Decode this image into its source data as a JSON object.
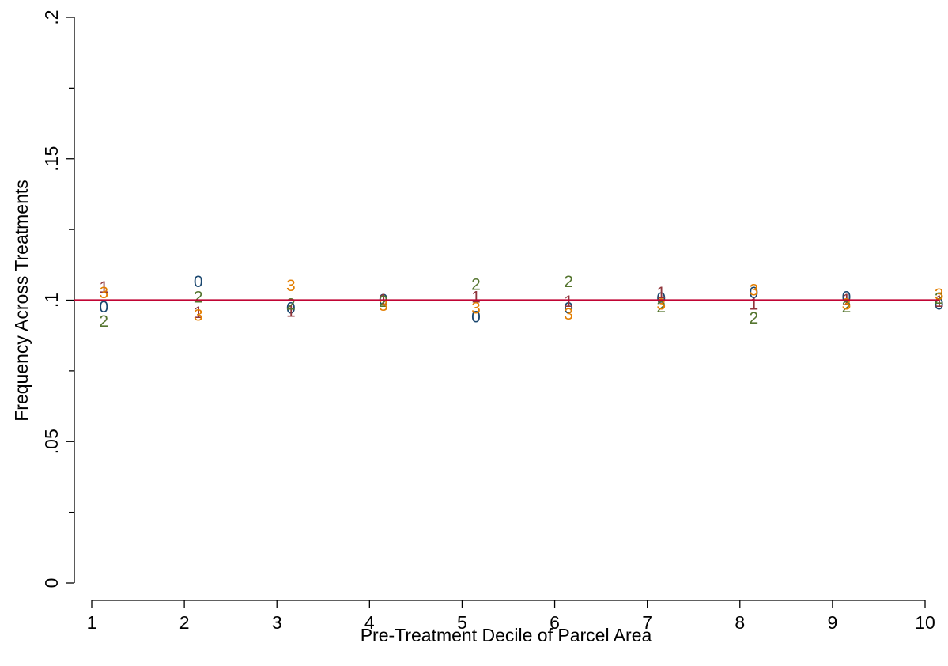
{
  "chart_data": {
    "type": "scatter",
    "xlabel": "Pre-Treatment Decile of Parcel Area",
    "ylabel": "Frequency Across Treatments",
    "x_ticks": [
      1,
      2,
      3,
      4,
      5,
      6,
      7,
      8,
      9,
      10
    ],
    "x_tick_labels": [
      "1",
      "2",
      "3",
      "4",
      "5",
      "6",
      "7",
      "8",
      "9",
      "10"
    ],
    "y_ticks": [
      0,
      0.05,
      0.1,
      0.15,
      0.2
    ],
    "y_tick_labels": [
      "0",
      ".05",
      ".1",
      ".15",
      ".2"
    ],
    "xlim": [
      0.8,
      10.2
    ],
    "ylim": [
      0,
      0.2
    ],
    "grid": false,
    "series": [
      {
        "marker": "0",
        "color": "#1a476f",
        "x": [
          1.13,
          2.15,
          3.15,
          4.15,
          5.15,
          6.15,
          7.15,
          8.15,
          9.15,
          10.15
        ],
        "values": [
          0.0975,
          0.1065,
          0.097,
          0.1,
          0.094,
          0.097,
          0.1005,
          0.1025,
          0.101,
          0.0985
        ]
      },
      {
        "marker": "1",
        "color": "#90353b",
        "x": [
          1.13,
          2.15,
          3.15,
          4.15,
          5.15,
          6.15,
          7.15,
          8.15,
          9.15,
          10.15
        ],
        "values": [
          0.1045,
          0.0955,
          0.096,
          0.1,
          0.101,
          0.0995,
          0.1025,
          0.0985,
          0.1,
          0.0995
        ]
      },
      {
        "marker": "2",
        "color": "#55752f",
        "x": [
          1.13,
          2.15,
          3.15,
          4.15,
          5.15,
          6.15,
          7.15,
          8.15,
          9.15,
          10.15
        ],
        "values": [
          0.0925,
          0.101,
          0.0985,
          0.0995,
          0.1055,
          0.1065,
          0.0975,
          0.0935,
          0.0975,
          0.1005
        ]
      },
      {
        "marker": "3",
        "color": "#e37e00",
        "x": [
          1.13,
          2.15,
          3.15,
          4.15,
          5.15,
          6.15,
          7.15,
          8.15,
          9.15,
          10.15
        ],
        "values": [
          0.1025,
          0.0945,
          0.105,
          0.098,
          0.097,
          0.095,
          0.0985,
          0.1035,
          0.0985,
          0.102
        ]
      }
    ],
    "reference_line": {
      "y": 0.1,
      "color": "#c10534"
    }
  }
}
